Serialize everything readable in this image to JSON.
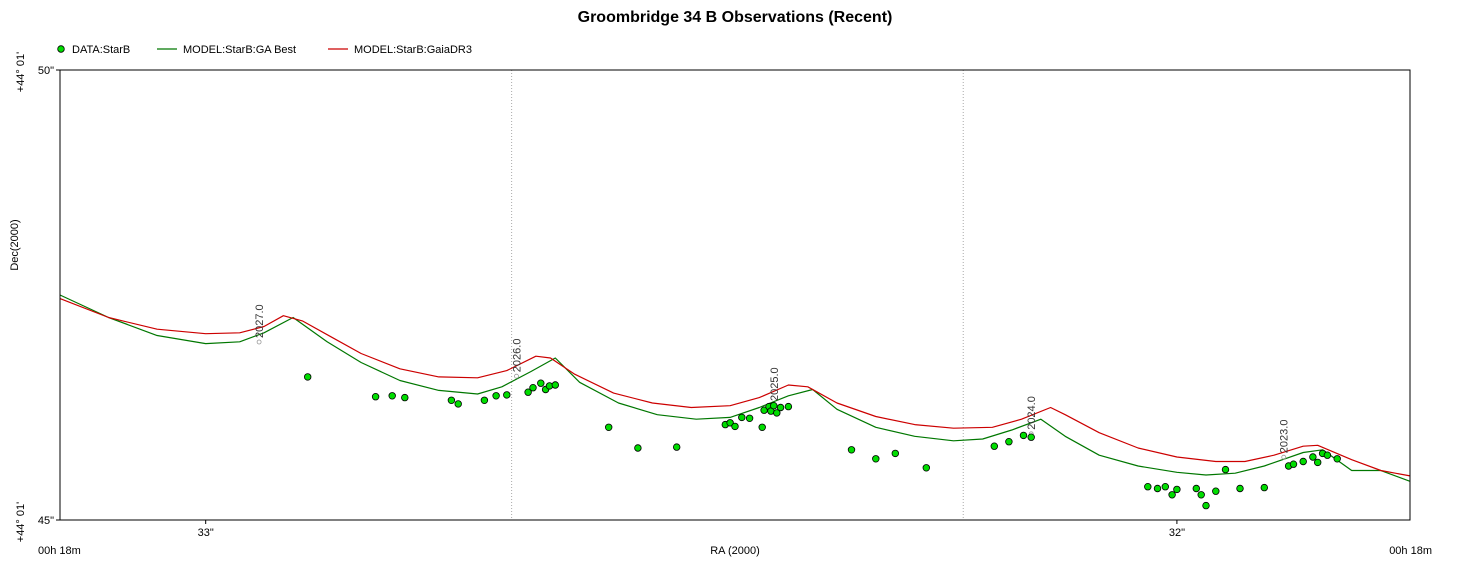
{
  "chart_data": {
    "type": "scatter",
    "title": "Groombridge 34 B Observations (Recent)",
    "xlabel": "RA (2000)",
    "ylabel": "Dec(2000)",
    "x_axis": {
      "unit": "seconds of RA (00h 18m ss)",
      "range": [
        33.15,
        31.76
      ],
      "reversed": true,
      "edge_labels": {
        "left": "00h 18m",
        "right": "00h 18m"
      },
      "ticks": [
        {
          "value": 33.0,
          "label": "33\""
        },
        {
          "value": 32.0,
          "label": "32\""
        }
      ],
      "gridlines": [
        32.685,
        32.22
      ]
    },
    "y_axis": {
      "unit": "arcseconds of Dec (+44° 01' ss)",
      "range": [
        45,
        50
      ],
      "ticks": [
        {
          "value": 50,
          "label": "50\"",
          "prefix": "+44° 01'"
        },
        {
          "value": 45,
          "label": "45\"",
          "prefix": "+44° 01'"
        }
      ]
    },
    "legend": {
      "placement": "top-left",
      "entries": [
        {
          "name": "DATA:StarB",
          "kind": "marker",
          "color": "#00dd00"
        },
        {
          "name": "MODEL:StarB:GA Best",
          "kind": "line",
          "color": "#007700"
        },
        {
          "name": "MODEL:StarB:GaiaDR3",
          "kind": "line",
          "color": "#cc0000"
        }
      ]
    },
    "epoch_labels": [
      {
        "text": "2027.0",
        "x": 32.945,
        "y": 47.0
      },
      {
        "text": "2026.0",
        "x": 32.68,
        "y": 46.62
      },
      {
        "text": "2025.0",
        "x": 32.415,
        "y": 46.3
      },
      {
        "text": "2024.0",
        "x": 32.15,
        "y": 45.98
      },
      {
        "text": "2023.0",
        "x": 31.89,
        "y": 45.72
      }
    ],
    "series": [
      {
        "name": "DATA:StarB",
        "type": "scatter",
        "color": "#00dd00",
        "points": [
          [
            32.895,
            46.59
          ],
          [
            32.825,
            46.37
          ],
          [
            32.808,
            46.38
          ],
          [
            32.795,
            46.36
          ],
          [
            32.747,
            46.33
          ],
          [
            32.74,
            46.29
          ],
          [
            32.713,
            46.33
          ],
          [
            32.701,
            46.38
          ],
          [
            32.69,
            46.39
          ],
          [
            32.668,
            46.42
          ],
          [
            32.663,
            46.47
          ],
          [
            32.655,
            46.52
          ],
          [
            32.65,
            46.45
          ],
          [
            32.646,
            46.49
          ],
          [
            32.64,
            46.5
          ],
          [
            32.585,
            46.03
          ],
          [
            32.555,
            45.8
          ],
          [
            32.515,
            45.81
          ],
          [
            32.465,
            46.06
          ],
          [
            32.46,
            46.08
          ],
          [
            32.455,
            46.04
          ],
          [
            32.448,
            46.14
          ],
          [
            32.44,
            46.13
          ],
          [
            32.427,
            46.03
          ],
          [
            32.425,
            46.22
          ],
          [
            32.42,
            46.26
          ],
          [
            32.418,
            46.21
          ],
          [
            32.415,
            46.27
          ],
          [
            32.412,
            46.19
          ],
          [
            32.408,
            46.25
          ],
          [
            32.4,
            46.26
          ],
          [
            32.335,
            45.78
          ],
          [
            32.31,
            45.68
          ],
          [
            32.29,
            45.74
          ],
          [
            32.258,
            45.58
          ],
          [
            32.188,
            45.82
          ],
          [
            32.173,
            45.87
          ],
          [
            32.158,
            45.94
          ],
          [
            32.15,
            45.92
          ],
          [
            32.03,
            45.37
          ],
          [
            32.02,
            45.35
          ],
          [
            32.012,
            45.37
          ],
          [
            32.005,
            45.28
          ],
          [
            32.0,
            45.34
          ],
          [
            31.98,
            45.35
          ],
          [
            31.975,
            45.28
          ],
          [
            31.97,
            45.16
          ],
          [
            31.96,
            45.32
          ],
          [
            31.95,
            45.56
          ],
          [
            31.935,
            45.35
          ],
          [
            31.91,
            45.36
          ],
          [
            31.885,
            45.6
          ],
          [
            31.88,
            45.62
          ],
          [
            31.87,
            45.65
          ],
          [
            31.86,
            45.7
          ],
          [
            31.855,
            45.64
          ],
          [
            31.85,
            45.74
          ],
          [
            31.845,
            45.72
          ],
          [
            31.835,
            45.68
          ]
        ]
      },
      {
        "name": "MODEL:StarB:GA Best",
        "type": "line",
        "color": "#007700",
        "points": [
          [
            33.15,
            47.5
          ],
          [
            33.1,
            47.25
          ],
          [
            33.05,
            47.05
          ],
          [
            33.0,
            46.96
          ],
          [
            32.965,
            46.98
          ],
          [
            32.94,
            47.08
          ],
          [
            32.91,
            47.25
          ],
          [
            32.875,
            46.98
          ],
          [
            32.84,
            46.75
          ],
          [
            32.8,
            46.55
          ],
          [
            32.76,
            46.44
          ],
          [
            32.72,
            46.4
          ],
          [
            32.695,
            46.48
          ],
          [
            32.665,
            46.65
          ],
          [
            32.64,
            46.8
          ],
          [
            32.615,
            46.53
          ],
          [
            32.575,
            46.3
          ],
          [
            32.535,
            46.17
          ],
          [
            32.495,
            46.12
          ],
          [
            32.46,
            46.14
          ],
          [
            32.43,
            46.25
          ],
          [
            32.4,
            46.38
          ],
          [
            32.375,
            46.45
          ],
          [
            32.35,
            46.23
          ],
          [
            32.31,
            46.03
          ],
          [
            32.27,
            45.93
          ],
          [
            32.23,
            45.88
          ],
          [
            32.2,
            45.9
          ],
          [
            32.17,
            46.0
          ],
          [
            32.14,
            46.12
          ],
          [
            32.115,
            45.93
          ],
          [
            32.08,
            45.72
          ],
          [
            32.04,
            45.6
          ],
          [
            32.0,
            45.53
          ],
          [
            31.97,
            45.5
          ],
          [
            31.94,
            45.52
          ],
          [
            31.91,
            45.6
          ],
          [
            31.87,
            45.75
          ],
          [
            31.85,
            45.78
          ],
          [
            31.82,
            45.55
          ],
          [
            31.79,
            45.55
          ],
          [
            31.76,
            45.43
          ]
        ]
      },
      {
        "name": "MODEL:StarB:GaiaDR3",
        "type": "line",
        "color": "#cc0000",
        "points": [
          [
            33.15,
            47.46
          ],
          [
            33.1,
            47.25
          ],
          [
            33.05,
            47.12
          ],
          [
            33.0,
            47.07
          ],
          [
            32.965,
            47.08
          ],
          [
            32.94,
            47.15
          ],
          [
            32.92,
            47.27
          ],
          [
            32.9,
            47.21
          ],
          [
            32.87,
            47.03
          ],
          [
            32.84,
            46.85
          ],
          [
            32.8,
            46.68
          ],
          [
            32.76,
            46.59
          ],
          [
            32.72,
            46.58
          ],
          [
            32.69,
            46.66
          ],
          [
            32.66,
            46.82
          ],
          [
            32.645,
            46.8
          ],
          [
            32.62,
            46.62
          ],
          [
            32.58,
            46.41
          ],
          [
            32.54,
            46.3
          ],
          [
            32.5,
            46.25
          ],
          [
            32.46,
            46.27
          ],
          [
            32.43,
            46.36
          ],
          [
            32.4,
            46.5
          ],
          [
            32.38,
            46.48
          ],
          [
            32.35,
            46.3
          ],
          [
            32.31,
            46.15
          ],
          [
            32.27,
            46.06
          ],
          [
            32.23,
            46.02
          ],
          [
            32.19,
            46.03
          ],
          [
            32.16,
            46.12
          ],
          [
            32.13,
            46.25
          ],
          [
            32.115,
            46.17
          ],
          [
            32.08,
            45.97
          ],
          [
            32.04,
            45.8
          ],
          [
            32.0,
            45.7
          ],
          [
            31.96,
            45.65
          ],
          [
            31.93,
            45.65
          ],
          [
            31.9,
            45.72
          ],
          [
            31.87,
            45.82
          ],
          [
            31.855,
            45.83
          ],
          [
            31.82,
            45.67
          ],
          [
            31.79,
            45.55
          ],
          [
            31.76,
            45.49
          ]
        ]
      }
    ]
  }
}
